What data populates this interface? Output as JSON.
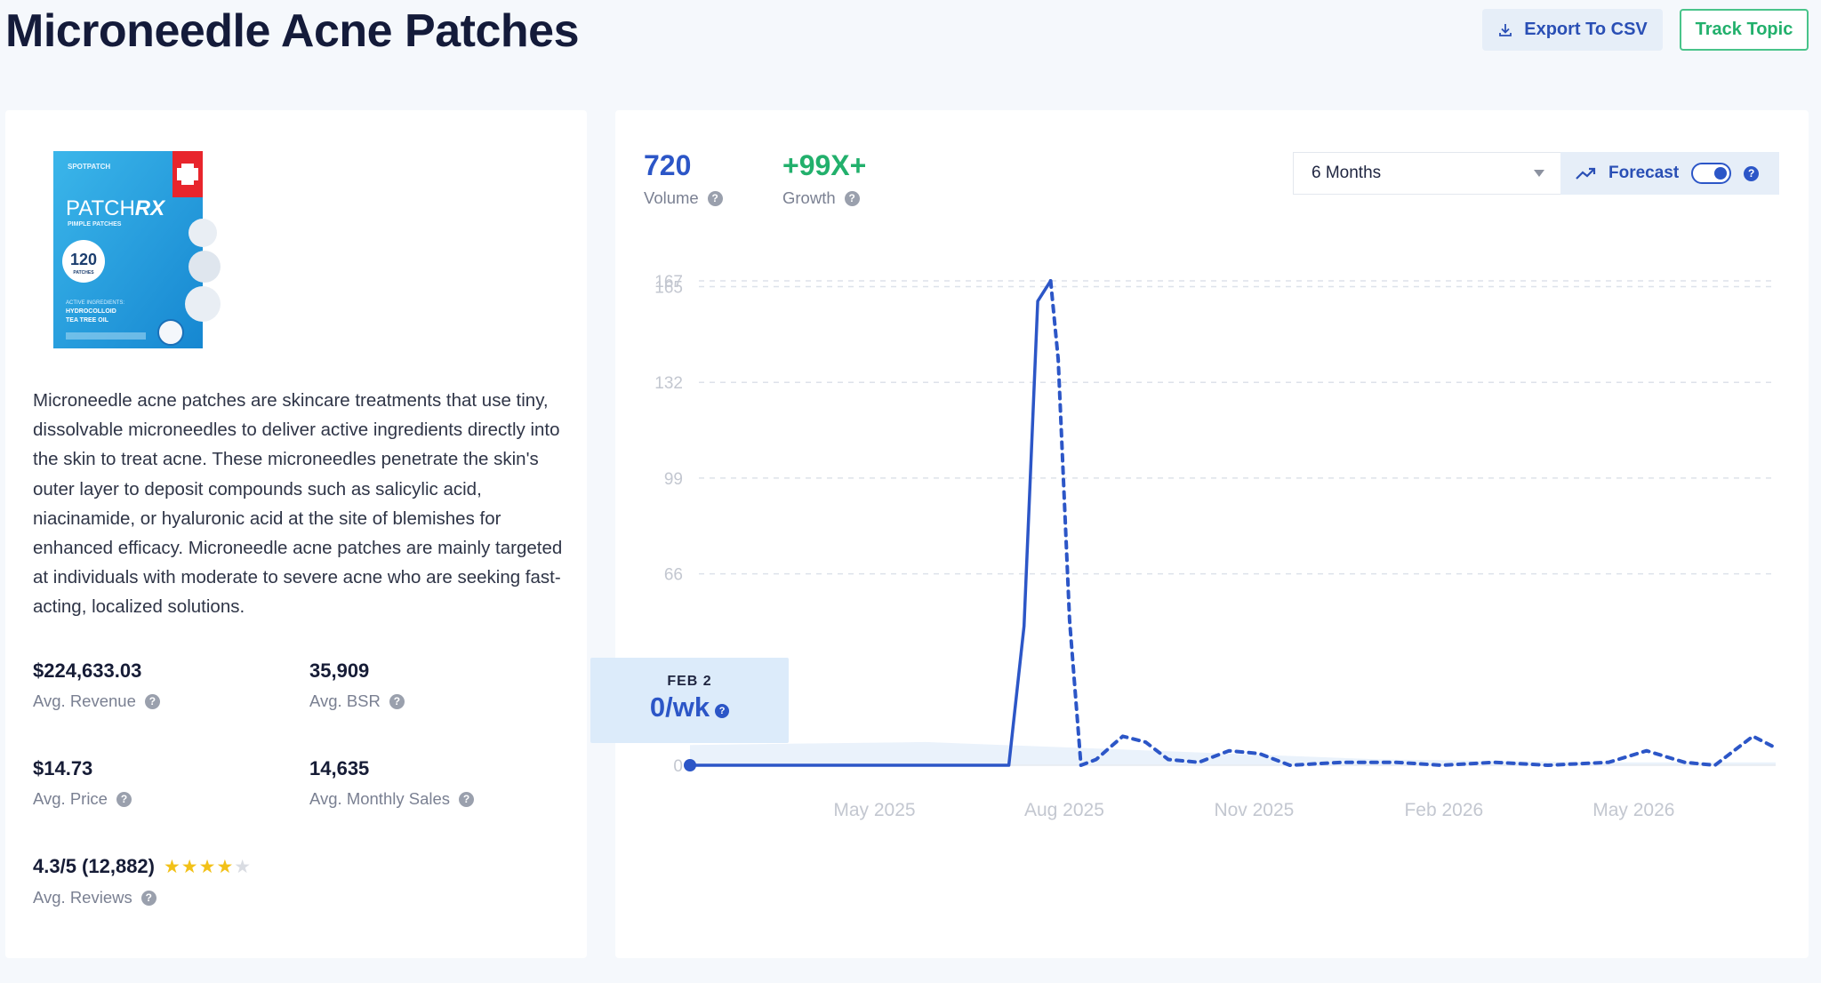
{
  "header": {
    "title": "Microneedle Acne Patches",
    "export_label": "Export To CSV",
    "track_label": "Track Topic"
  },
  "product": {
    "brand": "SPOTPATCH",
    "name_plain": "PATCH",
    "name_bold": "RX",
    "subtitle": "PIMPLE PATCHES",
    "count": "120",
    "count_unit": "PATCHES",
    "ingredients_heading": "ACTIVE INGREDIENTS:",
    "ingredient_1": "HYDROCOLLOID",
    "ingredient_2": "TEA TREE OIL"
  },
  "description": "Microneedle acne patches are skincare treatments that use tiny, dissolvable microneedles to deliver active ingredients directly into the skin to treat acne. These microneedles penetrate the skin's outer layer to deposit compounds such as salicylic acid, niacinamide, or hyaluronic acid at the site of blemishes for enhanced efficacy. Microneedle acne patches are mainly targeted at individuals with moderate to severe acne who are seeking fast-acting, localized solutions.",
  "stats": {
    "revenue": {
      "value": "$224,633.03",
      "label": "Avg. Revenue"
    },
    "bsr": {
      "value": "35,909",
      "label": "Avg. BSR"
    },
    "price": {
      "value": "$14.73",
      "label": "Avg. Price"
    },
    "sales": {
      "value": "14,635",
      "label": "Avg. Monthly Sales"
    },
    "reviews": {
      "value": "4.3/5 (12,882)",
      "label": "Avg. Reviews",
      "rating": 4.3
    }
  },
  "metrics": {
    "volume": {
      "value": "720",
      "label": "Volume"
    },
    "growth": {
      "value": "+99X+",
      "label": "Growth"
    }
  },
  "controls": {
    "range": "6 Months",
    "forecast_label": "Forecast",
    "forecast_on": true
  },
  "tooltip": {
    "date": "FEB 2",
    "value": "0/wk"
  },
  "colors": {
    "accent": "#2c56c7",
    "growth": "#22b06c",
    "area": "#eaf2fb"
  },
  "chart_data": {
    "type": "line",
    "y_ticks": [
      0,
      66,
      99,
      132,
      165,
      167
    ],
    "ylim": [
      0,
      167
    ],
    "x_ticks": [
      {
        "label": "May 2025",
        "t": 2025.333
      },
      {
        "label": "Aug 2025",
        "t": 2025.583
      },
      {
        "label": "Nov 2025",
        "t": 2025.833
      },
      {
        "label": "Feb 2026",
        "t": 2026.083
      },
      {
        "label": "May 2026",
        "t": 2026.333
      }
    ],
    "xlim": [
      2025.09,
      2026.52
    ],
    "series": [
      {
        "style": "solid",
        "points": [
          [
            2025.09,
            0
          ],
          [
            2025.51,
            0
          ],
          [
            2025.53,
            48
          ],
          [
            2025.548,
            160
          ],
          [
            2025.565,
            167
          ]
        ]
      },
      {
        "style": "dashed",
        "points": [
          [
            2025.565,
            167
          ],
          [
            2025.575,
            140
          ],
          [
            2025.59,
            50
          ],
          [
            2025.605,
            0
          ],
          [
            2025.625,
            2
          ],
          [
            2025.66,
            10
          ],
          [
            2025.69,
            8
          ],
          [
            2025.72,
            2
          ],
          [
            2025.76,
            1
          ],
          [
            2025.8,
            5
          ],
          [
            2025.84,
            4
          ],
          [
            2025.88,
            0
          ],
          [
            2025.95,
            1
          ],
          [
            2026.02,
            1
          ],
          [
            2026.08,
            0
          ],
          [
            2026.15,
            1
          ],
          [
            2026.22,
            0
          ],
          [
            2026.3,
            1
          ],
          [
            2026.35,
            5
          ],
          [
            2026.4,
            1
          ],
          [
            2026.44,
            0
          ],
          [
            2026.49,
            10
          ],
          [
            2026.52,
            6
          ]
        ]
      }
    ],
    "area_points": [
      [
        2025.09,
        7
      ],
      [
        2025.4,
        8
      ],
      [
        2025.6,
        6
      ],
      [
        2025.8,
        4
      ],
      [
        2026.0,
        2
      ],
      [
        2026.3,
        1
      ],
      [
        2026.52,
        1
      ]
    ],
    "grid": true
  }
}
